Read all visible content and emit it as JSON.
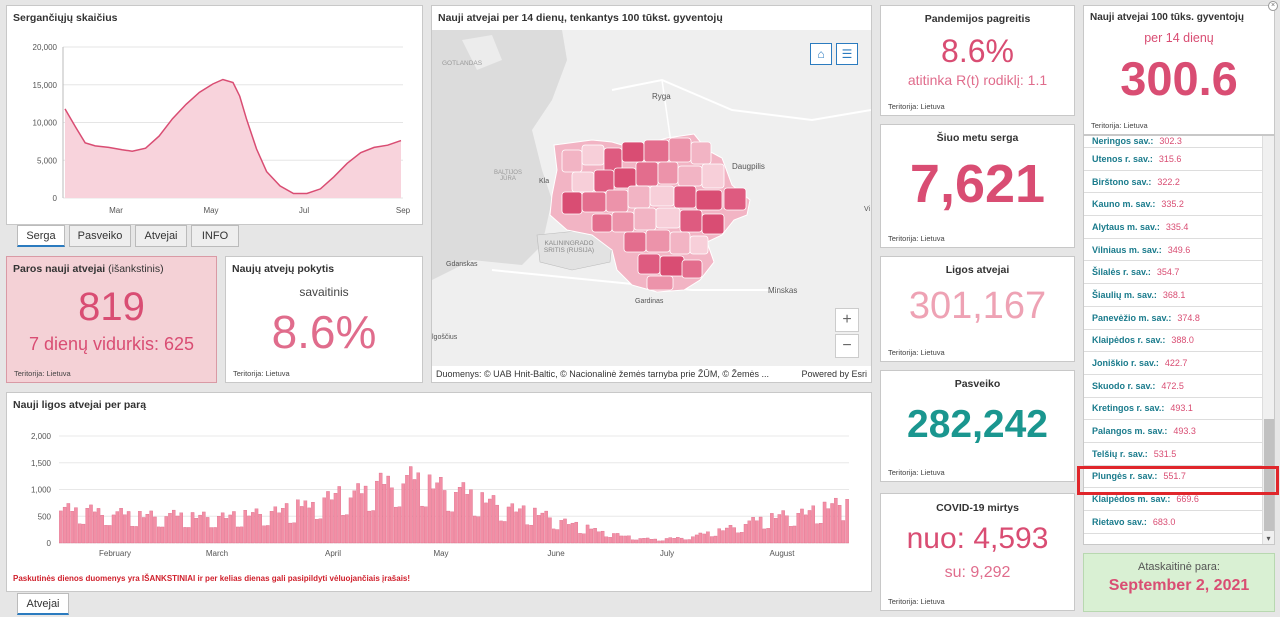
{
  "p1": {
    "title": "Sergančiųjų skaičius",
    "yticks": [
      "20,000",
      "15,000",
      "10,000",
      "5,000",
      "0"
    ],
    "xticks": [
      "Mar",
      "May",
      "Jul",
      "Sep"
    ]
  },
  "tabs": [
    {
      "label": "Serga"
    },
    {
      "label": "Pasveiko"
    },
    {
      "label": "Atvejai"
    },
    {
      "label": "INFO"
    }
  ],
  "daily": {
    "title": "Paros nauji atvejai",
    "note": "(išankstinis)",
    "value": "819",
    "avg": "7 dienų vidurkis: 625",
    "foot": "Teritorija: Lietuva"
  },
  "change": {
    "title": "Naujų atvejų pokytis",
    "sub": "savaitinis",
    "value": "8.6%",
    "foot": "Teritorija: Lietuva"
  },
  "map": {
    "title": "Nauji atvejai per 14 dienų, tenkantys 100 tūkst. gyventojų",
    "attribution": "Duomenys: © UAB Hnit-Baltic, © Nacionalinė žemės tarnyba prie ŽŪM, © Žemės ...",
    "powered": "Powered by Esri",
    "labels": {
      "gotlandas": "GOTLANDAS",
      "ryga": "Ryga",
      "daugpilis": "Daugpilis",
      "baltijos": "BALTIJOS JŪRA",
      "kaliningrado": "KALININGRADO SRITIS (RUSIJA)",
      "gdanskas": "Gdanskas",
      "minskas": "Minskas",
      "gardinas": "Gardinas",
      "igoscius": "lgoščius",
      "vi": "Vi",
      "kl": "Kla"
    },
    "home_icon": "⌂",
    "list_icon": "☰",
    "zoom_in": "+",
    "zoom_out": "−"
  },
  "chart2": {
    "title": "Nauji ligos atvejai per parą",
    "yticks": [
      "2,000",
      "1,500",
      "1,000",
      "500",
      "0"
    ],
    "months": [
      "February",
      "March",
      "April",
      "May",
      "June",
      "July",
      "August"
    ],
    "warning": "Paskutinės dienos duomenys yra IŠANKSTINIAI ir per kelias dienas gali pasipildyti vėluojančiais įrašais!",
    "tab": "Atvejai"
  },
  "kpi_growth": {
    "title": "Pandemijos pagreitis",
    "value": "8.6%",
    "sub": "atitinka R(t) rodiklį: 1.1",
    "foot": "Teritorija: Lietuva"
  },
  "kpi_sick": {
    "title": "Šiuo metu serga",
    "value": "7,621",
    "foot": "Teritorija: Lietuva"
  },
  "kpi_cases": {
    "title": "Ligos atvejai",
    "value": "301,167",
    "foot": "Teritorija: Lietuva"
  },
  "kpi_recovered": {
    "title": "Pasveiko",
    "value": "282,242",
    "foot": "Teritorija: Lietuva"
  },
  "kpi_deaths": {
    "title": "COVID-19 mirtys",
    "value": "nuo: 4,593",
    "sub": "su: 9,292",
    "foot": "Teritorija: Lietuva"
  },
  "kpi_rate": {
    "title": "Nauji atvejai 100 tūks. gyventojų",
    "sub": "per 14 dienų",
    "value": "300.6",
    "foot": "Teritorija: Lietuva"
  },
  "municipalities": [
    {
      "name": "Neringos sav.:",
      "value": "302.3"
    },
    {
      "name": "Utenos r. sav.:",
      "value": "315.6"
    },
    {
      "name": "Birštono sav.:",
      "value": "322.2"
    },
    {
      "name": "Kauno m. sav.:",
      "value": "335.2"
    },
    {
      "name": "Alytaus m. sav.:",
      "value": "335.4"
    },
    {
      "name": "Vilniaus m. sav.:",
      "value": "349.6"
    },
    {
      "name": "Šilalės r. sav.:",
      "value": "354.7"
    },
    {
      "name": "Šiaulių m. sav.:",
      "value": "368.1"
    },
    {
      "name": "Panevėžio m. sav.:",
      "value": "374.8"
    },
    {
      "name": "Klaipėdos r. sav.:",
      "value": "388.0"
    },
    {
      "name": "Joniškio r. sav.:",
      "value": "422.7"
    },
    {
      "name": "Skuodo r. sav.:",
      "value": "472.5"
    },
    {
      "name": "Kretingos r. sav.:",
      "value": "493.1"
    },
    {
      "name": "Palangos m. sav.:",
      "value": "493.3"
    },
    {
      "name": "Telšių r. sav.:",
      "value": "531.5"
    },
    {
      "name": "Plungės r. sav.:",
      "value": "551.7"
    },
    {
      "name": "Klaipėdos m. sav.:",
      "value": "669.6"
    },
    {
      "name": "Rietavo sav.:",
      "value": "683.0"
    }
  ],
  "report": {
    "label": "Ataskaitinė para:",
    "date": "September 2, 2021"
  },
  "colors": {
    "accent": "#d94d73",
    "pink": "#e06c8c",
    "teal": "#1a968f",
    "highlight": "#e0262b",
    "report_bg": "#d9f0d3"
  }
}
